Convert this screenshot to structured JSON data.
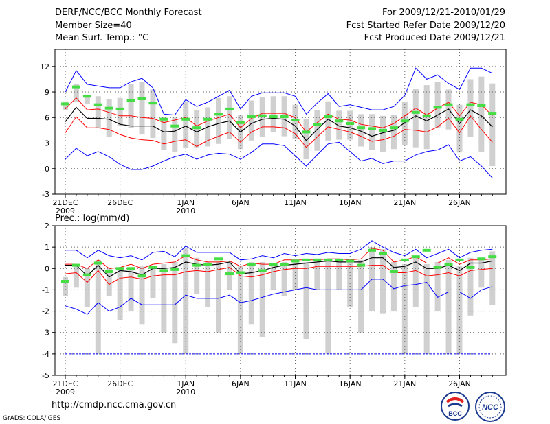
{
  "header": {
    "left": [
      "DERF/NCC/BCC Monthly Forecast",
      "Member Size=40",
      "Mean Surf. Temp.: °C"
    ],
    "right": [
      "For 2009/12/21-2010/01/29",
      "Fcst Started Refer Date 2009/12/20",
      "Fcst Produced Date 2009/12/21"
    ]
  },
  "footer": {
    "url": "http://cmdp.ncc.cma.gov.cn",
    "credit": "GrADS: COLA/IGES",
    "logo1": "BCC",
    "logo2": "NCC"
  },
  "colors": {
    "max": "#0000ff",
    "ens": "#ff0000",
    "mean": "#000000",
    "box": "#d0d0d0",
    "obs": "#44dd44"
  },
  "chart_data": [
    {
      "type": "line",
      "title": "Mean Surf. Temp.: °C",
      "xticks": [
        {
          "day": 0,
          "label": "21DEC",
          "sub": "2009"
        },
        {
          "day": 5,
          "label": "26DEC",
          "sub": ""
        },
        {
          "day": 11,
          "label": "1JAN",
          "sub": "2010"
        },
        {
          "day": 16,
          "label": "6JAN",
          "sub": ""
        },
        {
          "day": 21,
          "label": "11JAN",
          "sub": ""
        },
        {
          "day": 26,
          "label": "16JAN",
          "sub": ""
        },
        {
          "day": 31,
          "label": "21JAN",
          "sub": ""
        },
        {
          "day": 36,
          "label": "26JAN",
          "sub": ""
        }
      ],
      "ylim": [
        -3,
        14
      ],
      "yticks": [
        -3,
        0,
        3,
        6,
        9,
        12
      ],
      "series": [
        {
          "name": "max",
          "values": [
            9.0,
            11.5,
            9.9,
            9.7,
            9.5,
            9.5,
            10.2,
            10.6,
            9.5,
            6.4,
            6.3,
            8.1,
            7.3,
            7.8,
            8.5,
            9.2,
            7.0,
            8.5,
            8.9,
            8.9,
            8.9,
            8.5,
            6.4,
            7.7,
            8.8,
            7.3,
            7.5,
            7.2,
            6.9,
            6.9,
            7.3,
            8.6,
            11.8,
            10.5,
            11.0,
            10.0,
            9.3,
            11.8,
            11.8,
            11.2
          ]
        },
        {
          "name": "upper",
          "values": [
            7.0,
            8.3,
            6.9,
            7.0,
            6.6,
            6.2,
            6.2,
            6.0,
            5.9,
            5.4,
            5.7,
            6.0,
            5.0,
            5.6,
            6.0,
            6.4,
            4.8,
            5.9,
            6.5,
            6.5,
            6.5,
            6.0,
            4.3,
            5.4,
            6.4,
            5.8,
            5.7,
            5.2,
            5.0,
            4.8,
            5.3,
            6.2,
            7.1,
            6.3,
            7.1,
            7.8,
            6.2,
            7.8,
            7.5,
            6.2
          ]
        },
        {
          "name": "mean",
          "values": [
            5.5,
            7.2,
            5.9,
            5.9,
            5.8,
            5.2,
            5.0,
            5.0,
            5.0,
            4.3,
            4.4,
            5.0,
            4.3,
            4.9,
            5.3,
            5.6,
            4.3,
            5.3,
            5.8,
            5.9,
            5.8,
            5.0,
            3.3,
            4.6,
            5.8,
            5.0,
            4.8,
            4.4,
            3.8,
            4.2,
            4.5,
            5.4,
            6.2,
            5.6,
            6.3,
            7.0,
            5.3,
            6.9,
            6.2,
            4.9
          ]
        },
        {
          "name": "lower",
          "values": [
            4.2,
            6.1,
            4.8,
            4.8,
            4.6,
            4.0,
            3.6,
            3.4,
            3.3,
            2.9,
            3.2,
            3.4,
            2.6,
            3.3,
            3.8,
            4.3,
            3.1,
            4.3,
            4.9,
            4.9,
            4.8,
            4.1,
            2.5,
            3.7,
            4.9,
            4.6,
            4.3,
            3.8,
            3.2,
            3.4,
            3.8,
            4.6,
            4.5,
            4.3,
            4.9,
            5.9,
            4.2,
            6.2,
            4.6,
            3.1
          ]
        },
        {
          "name": "min",
          "values": [
            1.1,
            2.4,
            1.5,
            2.0,
            1.4,
            0.5,
            -0.1,
            -0.1,
            0.3,
            0.9,
            1.4,
            1.7,
            1.1,
            1.6,
            1.8,
            1.7,
            1.1,
            1.9,
            2.9,
            2.9,
            2.7,
            1.5,
            0.3,
            1.6,
            2.9,
            3.1,
            2.0,
            0.9,
            1.2,
            0.6,
            0.9,
            0.9,
            1.6,
            2.0,
            2.2,
            2.8,
            0.9,
            1.4,
            0.3,
            -1.1
          ]
        },
        {
          "name": "box_top",
          "values": [
            7.9,
            9.9,
            8.7,
            8.5,
            8.2,
            8.3,
            9.9,
            10.2,
            9.3,
            6.1,
            6.0,
            7.8,
            6.9,
            7.2,
            8.3,
            8.5,
            6.3,
            8.0,
            8.4,
            8.5,
            8.5,
            7.5,
            5.8,
            6.9,
            7.9,
            6.8,
            6.8,
            6.4,
            6.4,
            6.2,
            6.3,
            7.8,
            9.4,
            9.8,
            10.2,
            9.3,
            7.5,
            10.5,
            10.8,
            10.0
          ]
        },
        {
          "name": "box_bottom",
          "values": [
            6.9,
            7.8,
            7.6,
            4.8,
            3.7,
            5.0,
            4.8,
            4.0,
            3.6,
            2.2,
            2.0,
            2.4,
            2.5,
            2.6,
            2.9,
            3.5,
            2.3,
            3.3,
            3.7,
            4.3,
            3.8,
            3.5,
            1.1,
            2.1,
            3.3,
            3.4,
            3.4,
            2.6,
            2.2,
            2.0,
            2.3,
            2.8,
            2.5,
            2.3,
            4.8,
            4.6,
            1.9,
            3.7,
            2.0,
            0.3
          ]
        },
        {
          "name": "obs",
          "values": [
            7.6,
            9.6,
            8.5,
            7.5,
            7.1,
            7.0,
            8.0,
            8.2,
            7.7,
            5.8,
            5.0,
            5.8,
            4.8,
            5.8,
            6.4,
            7.0,
            5.4,
            6.1,
            6.2,
            6.1,
            6.1,
            5.7,
            4.3,
            5.2,
            6.1,
            5.6,
            5.3,
            4.8,
            4.7,
            4.5,
            4.8,
            5.6,
            6.6,
            6.2,
            7.2,
            7.5,
            5.8,
            7.5,
            7.4,
            6.5
          ]
        }
      ]
    },
    {
      "type": "line",
      "title": "Prec.: log(mm/d)",
      "xticks": [
        {
          "day": 0,
          "label": "21DEC",
          "sub": "2009"
        },
        {
          "day": 5,
          "label": "26DEC",
          "sub": ""
        },
        {
          "day": 11,
          "label": "1JAN",
          "sub": "2010"
        },
        {
          "day": 16,
          "label": "6JAN",
          "sub": ""
        },
        {
          "day": 21,
          "label": "11JAN",
          "sub": ""
        },
        {
          "day": 26,
          "label": "16JAN",
          "sub": ""
        },
        {
          "day": 31,
          "label": "21JAN",
          "sub": ""
        },
        {
          "day": 36,
          "label": "26JAN",
          "sub": ""
        }
      ],
      "ylim": [
        -5,
        2
      ],
      "yticks": [
        -5,
        -4,
        -3,
        -2,
        -1,
        0,
        1,
        2
      ],
      "series": [
        {
          "name": "max",
          "values": [
            0.85,
            0.85,
            0.5,
            0.85,
            0.6,
            0.5,
            0.6,
            0.4,
            0.75,
            0.8,
            0.55,
            1.05,
            0.75,
            0.75,
            0.75,
            0.75,
            0.4,
            0.45,
            0.6,
            0.5,
            0.7,
            0.6,
            0.7,
            0.65,
            0.75,
            0.7,
            0.7,
            0.9,
            1.3,
            1.0,
            0.75,
            0.6,
            0.9,
            0.5,
            0.7,
            0.9,
            0.5,
            0.75,
            0.85,
            0.9
          ]
        },
        {
          "name": "upper",
          "values": [
            0.2,
            0.2,
            0.0,
            0.4,
            0.0,
            0.05,
            0.2,
            0.0,
            0.2,
            0.25,
            0.3,
            0.6,
            0.4,
            0.3,
            0.3,
            0.35,
            0.1,
            0.25,
            0.2,
            0.2,
            0.4,
            0.4,
            0.4,
            0.4,
            0.45,
            0.45,
            0.4,
            0.45,
            0.95,
            0.85,
            0.3,
            0.4,
            0.55,
            0.25,
            0.25,
            0.5,
            0.2,
            0.4,
            0.4,
            0.45
          ]
        },
        {
          "name": "mean",
          "values": [
            0.15,
            0.15,
            -0.35,
            0.15,
            -0.4,
            -0.1,
            -0.15,
            -0.3,
            0.0,
            0.0,
            0.05,
            0.3,
            0.2,
            0.15,
            0.2,
            0.3,
            -0.25,
            -0.2,
            -0.1,
            0.05,
            0.15,
            0.2,
            0.25,
            0.3,
            0.35,
            0.3,
            0.3,
            0.3,
            0.5,
            0.5,
            0.05,
            0.1,
            0.3,
            0.0,
            0.0,
            0.15,
            -0.1,
            0.25,
            0.25,
            0.35
          ]
        },
        {
          "name": "lower",
          "values": [
            -0.25,
            -0.2,
            -0.65,
            -0.1,
            -0.75,
            -0.45,
            -0.4,
            -0.5,
            -0.35,
            -0.3,
            -0.3,
            -0.15,
            -0.1,
            -0.15,
            -0.05,
            0.05,
            -0.35,
            -0.4,
            -0.3,
            -0.15,
            -0.05,
            0.0,
            0.0,
            0.1,
            0.1,
            0.1,
            0.1,
            0.1,
            0.15,
            0.15,
            -0.2,
            -0.2,
            -0.1,
            -0.35,
            -0.3,
            -0.2,
            -0.35,
            -0.1,
            -0.05,
            0.0
          ]
        },
        {
          "name": "min",
          "values": [
            -1.75,
            -1.9,
            -2.15,
            -1.6,
            -2.0,
            -1.8,
            -1.4,
            -1.7,
            -1.7,
            -1.7,
            -1.7,
            -1.25,
            -1.4,
            -1.4,
            -1.4,
            -1.25,
            -1.6,
            -1.5,
            -1.35,
            -1.2,
            -1.1,
            -1.0,
            -0.9,
            -1.0,
            -1.0,
            -1.0,
            -1.0,
            -1.0,
            -0.5,
            -0.5,
            -0.95,
            -0.8,
            -0.75,
            -0.65,
            -1.35,
            -1.1,
            -1.1,
            -1.4,
            -1.0,
            -0.85
          ]
        },
        {
          "name": "box_top",
          "values": [
            -0.4,
            0.1,
            0.0,
            0.4,
            0.0,
            -0.05,
            0.0,
            0.1,
            0.1,
            0.2,
            0.3,
            0.95,
            0.5,
            0.3,
            0.3,
            0.3,
            0.1,
            0.3,
            0.3,
            0.2,
            0.3,
            0.3,
            0.3,
            0.3,
            0.4,
            0.3,
            0.3,
            0.4,
            1.0,
            0.9,
            0.3,
            0.2,
            0.6,
            0.2,
            0.3,
            0.4,
            0.1,
            0.5,
            0.4,
            0.8
          ]
        },
        {
          "name": "box_bottom",
          "values": [
            -1.3,
            -0.9,
            -1.8,
            -4.0,
            -1.3,
            -2.4,
            -2.0,
            -2.6,
            -1.4,
            -3.0,
            -3.5,
            -4.0,
            -1.2,
            -1.8,
            -3.0,
            -1.0,
            -4.0,
            -2.6,
            -3.2,
            -1.0,
            -1.3,
            -1.0,
            -3.3,
            -1.0,
            -4.0,
            -1.0,
            -1.8,
            -3.0,
            -2.0,
            -2.1,
            -2.0,
            -4.0,
            -1.8,
            -4.0,
            -2.0,
            -4.0,
            -4.0,
            -2.2,
            -0.9,
            -1.7
          ]
        },
        {
          "name": "obs",
          "values": [
            -0.6,
            0.15,
            -0.3,
            0.25,
            -0.15,
            0.0,
            0.0,
            -0.35,
            0.05,
            -0.1,
            -0.05,
            0.6,
            0.15,
            0.2,
            0.45,
            -0.25,
            -0.2,
            0.2,
            -0.1,
            0.2,
            0.2,
            0.35,
            0.4,
            0.4,
            0.4,
            0.4,
            0.35,
            0.15,
            0.85,
            0.7,
            -0.15,
            0.4,
            0.55,
            0.85,
            0.05,
            0.2,
            0.4,
            0.05,
            0.45,
            0.55
          ]
        }
      ]
    }
  ]
}
